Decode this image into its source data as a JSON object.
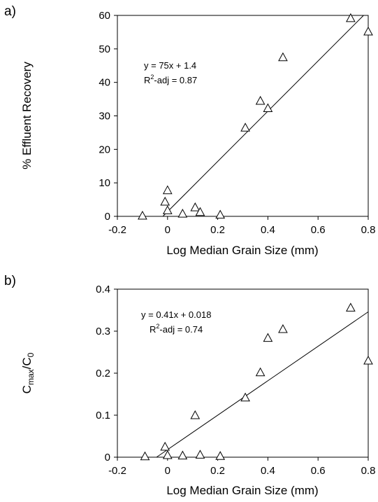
{
  "chart_data": [
    {
      "type": "scatter",
      "panel_label": "a)",
      "xlabel": "Log Median Grain Size (mm)",
      "ylabel": "% Effluent Recovery",
      "xlim": [
        -0.2,
        0.8
      ],
      "ylim": [
        0,
        60
      ],
      "xticks": [
        "-0.2",
        "0",
        "0.2",
        "0.4",
        "0.6",
        "0.8"
      ],
      "yticks": [
        "0",
        "10",
        "20",
        "30",
        "40",
        "50",
        "60"
      ],
      "x_tick_values": [
        -0.2,
        0,
        0.2,
        0.4,
        0.6,
        0.8
      ],
      "y_tick_values": [
        0,
        10,
        20,
        30,
        40,
        50,
        60
      ],
      "grid": false,
      "marker": "open-triangle",
      "points": [
        {
          "x": -0.1,
          "y": 0.2
        },
        {
          "x": -0.01,
          "y": 4.4
        },
        {
          "x": 0.0,
          "y": 7.8
        },
        {
          "x": 0.0,
          "y": 1.8
        },
        {
          "x": 0.06,
          "y": 0.8
        },
        {
          "x": 0.11,
          "y": 2.7
        },
        {
          "x": 0.13,
          "y": 1.3
        },
        {
          "x": 0.21,
          "y": 0.5
        },
        {
          "x": 0.31,
          "y": 26.5
        },
        {
          "x": 0.37,
          "y": 34.5
        },
        {
          "x": 0.4,
          "y": 32.3
        },
        {
          "x": 0.46,
          "y": 47.5
        },
        {
          "x": 0.73,
          "y": 59.2
        },
        {
          "x": 0.8,
          "y": 55.2
        }
      ],
      "trendline": {
        "slope": 75,
        "intercept": 1.4
      },
      "annotation": {
        "equation": "y = 75x + 1.4",
        "r2_prefix": "R",
        "r2_sup": "2",
        "r2_suffix": "-adj = 0.87"
      }
    },
    {
      "type": "scatter",
      "panel_label": "b)",
      "xlabel": "Log Median Grain Size (mm)",
      "ylabel": {
        "main": "C",
        "sub1": "max",
        "slash": "/C",
        "sub2": "0"
      },
      "xlim": [
        -0.2,
        0.8
      ],
      "ylim": [
        0,
        0.4
      ],
      "xticks": [
        "-0.2",
        "0",
        "0.2",
        "0.4",
        "0.6",
        "0.8"
      ],
      "yticks": [
        "0",
        "0.1",
        "0.2",
        "0.3",
        "0.4"
      ],
      "x_tick_values": [
        -0.2,
        0,
        0.2,
        0.4,
        0.6,
        0.8
      ],
      "y_tick_values": [
        0,
        0.1,
        0.2,
        0.3,
        0.4
      ],
      "grid": false,
      "marker": "open-triangle",
      "points": [
        {
          "x": -0.09,
          "y": 0.002
        },
        {
          "x": -0.01,
          "y": 0.025
        },
        {
          "x": 0.0,
          "y": 0.005
        },
        {
          "x": 0.06,
          "y": 0.004
        },
        {
          "x": 0.11,
          "y": 0.1
        },
        {
          "x": 0.13,
          "y": 0.006
        },
        {
          "x": 0.21,
          "y": 0.003
        },
        {
          "x": 0.31,
          "y": 0.142
        },
        {
          "x": 0.37,
          "y": 0.202
        },
        {
          "x": 0.4,
          "y": 0.284
        },
        {
          "x": 0.46,
          "y": 0.305
        },
        {
          "x": 0.73,
          "y": 0.356
        },
        {
          "x": 0.8,
          "y": 0.23
        }
      ],
      "trendline": {
        "slope": 0.41,
        "intercept": 0.018
      },
      "annotation": {
        "equation": "y = 0.41x + 0.018",
        "r2_prefix": "R",
        "r2_sup": "2",
        "r2_suffix": "-adj = 0.74"
      }
    }
  ]
}
